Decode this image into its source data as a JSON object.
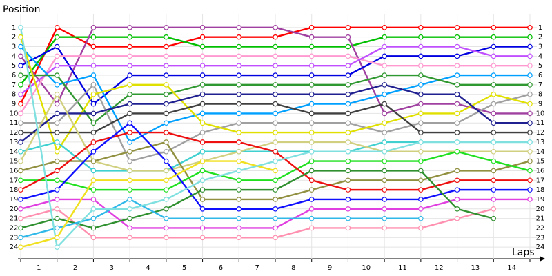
{
  "chart_data": {
    "type": "line",
    "ylabel": "Position",
    "xlabel": "Laps",
    "x": [
      0,
      1,
      2,
      3,
      4,
      5,
      6,
      7,
      8,
      9,
      10,
      11,
      12,
      13,
      14
    ],
    "xlim": [
      0,
      14
    ],
    "ylim": [
      25,
      0
    ],
    "xticks": [
      {
        "value": 0.5,
        "label": "1"
      },
      {
        "value": 1.5,
        "label": "2"
      },
      {
        "value": 2.5,
        "label": "3"
      },
      {
        "value": 3.5,
        "label": "4"
      },
      {
        "value": 4.5,
        "label": "5"
      },
      {
        "value": 5.5,
        "label": "6"
      },
      {
        "value": 6.5,
        "label": "7"
      },
      {
        "value": 7.5,
        "label": "8"
      },
      {
        "value": 8.5,
        "label": "9"
      },
      {
        "value": 9.5,
        "label": "10"
      },
      {
        "value": 10.5,
        "label": "11"
      },
      {
        "value": 11.5,
        "label": "12"
      },
      {
        "value": 12.5,
        "label": "13"
      },
      {
        "value": 13.5,
        "label": "14"
      }
    ],
    "yticks": [
      1,
      2,
      3,
      4,
      5,
      6,
      7,
      8,
      9,
      10,
      11,
      12,
      13,
      14,
      15,
      16,
      17,
      18,
      19,
      20,
      21,
      22,
      23,
      24
    ],
    "grid": true,
    "series": [
      {
        "color": "#ff0000",
        "values": [
          9,
          1,
          3,
          3,
          3,
          2,
          2,
          2,
          1,
          1,
          1,
          1,
          1,
          1,
          1
        ]
      },
      {
        "color": "#00c000",
        "values": [
          7,
          2,
          2,
          2,
          2,
          3,
          3,
          3,
          3,
          3,
          2,
          2,
          2,
          2,
          2
        ]
      },
      {
        "color": "#a040a0",
        "values": [
          4,
          9,
          1,
          1,
          1,
          1,
          1,
          1,
          2,
          2,
          10,
          9,
          9,
          10,
          10
        ]
      },
      {
        "color": "#0000e0",
        "values": [
          5,
          3,
          9,
          6,
          6,
          6,
          6,
          6,
          6,
          6,
          4,
          4,
          4,
          3,
          3
        ]
      },
      {
        "color": "#ff9ad0",
        "values": [
          10,
          4,
          4,
          4,
          4,
          4,
          4,
          4,
          4,
          4,
          5,
          5,
          5,
          5,
          5
        ]
      },
      {
        "color": "#c050ff",
        "values": [
          8,
          5,
          5,
          5,
          5,
          5,
          5,
          5,
          5,
          5,
          3,
          3,
          3,
          4,
          4
        ]
      },
      {
        "color": "#00a0ff",
        "values": [
          3,
          7,
          6,
          13,
          11,
          10,
          10,
          10,
          9,
          9,
          8,
          7,
          6,
          6,
          6
        ]
      },
      {
        "color": "#309830",
        "values": [
          6,
          6,
          11,
          8,
          8,
          7,
          7,
          7,
          7,
          7,
          6,
          6,
          7,
          7,
          7
        ]
      },
      {
        "color": "#a0a0a0",
        "values": [
          11,
          11,
          7,
          15,
          14,
          12,
          11,
          11,
          11,
          11,
          12,
          11,
          11,
          9,
          8
        ]
      },
      {
        "color": "#e0e000",
        "values": [
          2,
          14,
          8,
          7,
          7,
          11,
          12,
          12,
          12,
          12,
          11,
          10,
          10,
          8,
          9
        ]
      },
      {
        "color": "#202090",
        "values": [
          13,
          10,
          10,
          9,
          9,
          8,
          8,
          8,
          8,
          8,
          7,
          8,
          8,
          11,
          11
        ]
      },
      {
        "color": "#404040",
        "values": [
          12,
          12,
          12,
          10,
          10,
          9,
          9,
          9,
          10,
          10,
          9,
          12,
          12,
          12,
          12
        ]
      },
      {
        "color": "#40d0d0",
        "values": [
          14,
          13,
          16,
          16,
          16,
          14,
          14,
          14,
          14,
          14,
          13,
          13,
          13,
          13,
          13
        ]
      },
      {
        "color": "#d0d080",
        "values": [
          15,
          8,
          15,
          16,
          16,
          15,
          14,
          13,
          13,
          13,
          14,
          14,
          14,
          14,
          14
        ]
      },
      {
        "color": "#909040",
        "values": [
          16,
          15,
          15,
          14,
          13,
          19,
          19,
          19,
          18,
          17,
          17,
          17,
          16,
          16,
          15
        ]
      },
      {
        "color": "#20e020",
        "values": [
          17,
          17,
          18,
          18,
          18,
          16,
          17,
          17,
          15,
          15,
          15,
          15,
          14,
          15,
          16
        ]
      },
      {
        "color": "#ee1010",
        "values": [
          18,
          16,
          13,
          12,
          12,
          13,
          13,
          14,
          17,
          18,
          18,
          18,
          17,
          17,
          17
        ]
      },
      {
        "color": "#1010ff",
        "values": [
          19,
          18,
          14,
          11,
          15,
          20,
          20,
          20,
          19,
          19,
          19,
          19,
          18,
          18,
          18
        ]
      },
      {
        "color": "#e040e0",
        "values": [
          20,
          19,
          19,
          22,
          22,
          22,
          22,
          22,
          20,
          20,
          20,
          20,
          19,
          19,
          19
        ]
      },
      {
        "color": "#ff90b0",
        "values": [
          21,
          20,
          23,
          23,
          23,
          23,
          23,
          23,
          22,
          22,
          22,
          22,
          21,
          20,
          null
        ]
      },
      {
        "color": "#309030",
        "values": [
          22,
          21,
          22,
          21,
          20,
          18,
          18,
          18,
          16,
          16,
          16,
          16,
          20,
          21,
          null
        ]
      },
      {
        "color": "#30b8e8",
        "values": [
          23,
          22,
          21,
          19,
          21,
          21,
          21,
          21,
          21,
          21,
          21,
          21,
          null,
          null,
          null
        ]
      },
      {
        "color": "#f0e020",
        "values": [
          24,
          23,
          17,
          17,
          17,
          15,
          15,
          16,
          null,
          null,
          null,
          null,
          null,
          null,
          null
        ]
      },
      {
        "color": "#80e0e0",
        "values": [
          1,
          24,
          20,
          20,
          19,
          17,
          16,
          15,
          14,
          14,
          14,
          13,
          13,
          13,
          13
        ]
      }
    ]
  }
}
